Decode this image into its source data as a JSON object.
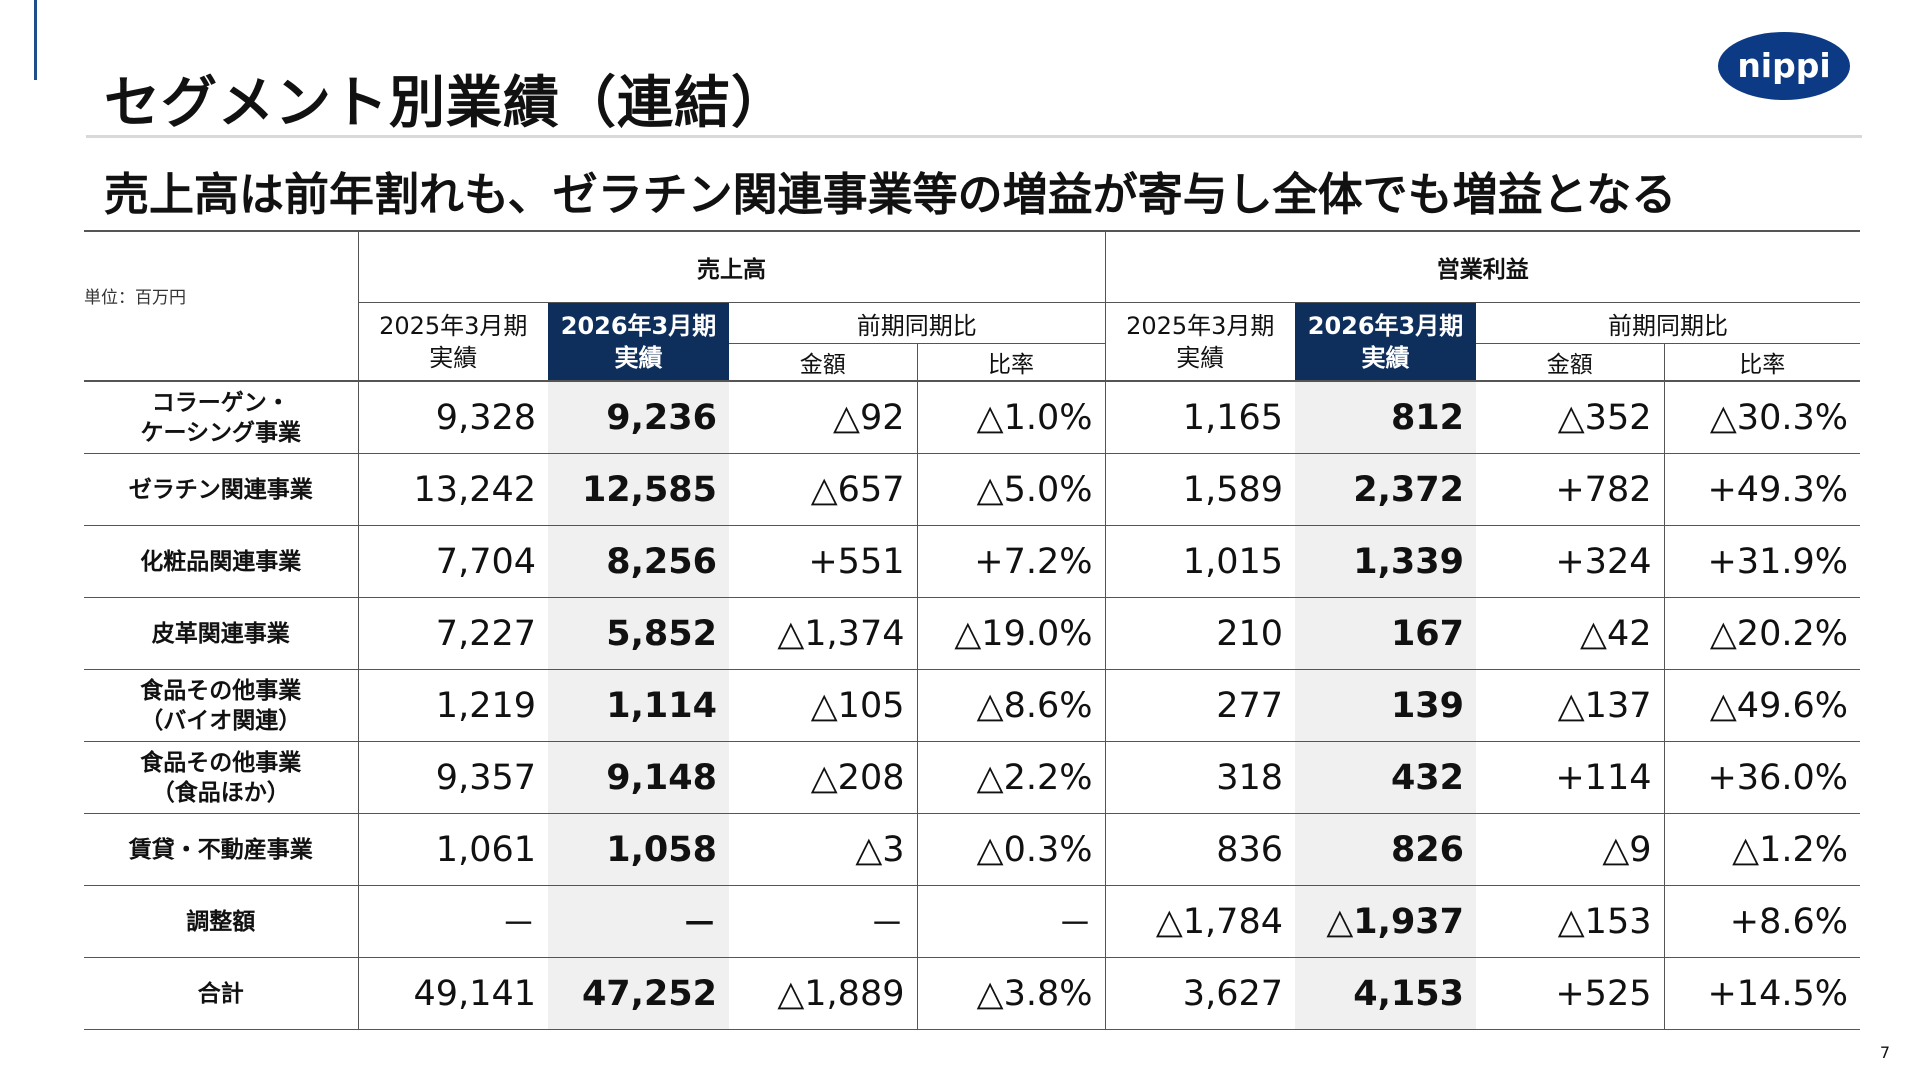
{
  "slide": {
    "title": "セグメント別業績（連結）",
    "logo_text": "nippi",
    "subtitle": "売上高は前年割れも、ゼラチン関連事業等の増益が寄与し全体でも増益となる",
    "page_number": "7",
    "colors": {
      "accent": "#1f4e8c",
      "logo_bg": "#0d3a84",
      "current_header_bg": "#0e2f5c",
      "current_column_bg": "#f0f0f0"
    }
  },
  "table": {
    "unit": "単位：百万円",
    "groups": [
      "売上高",
      "営業利益"
    ],
    "year_prev": [
      "2025年3月期",
      "実績"
    ],
    "year_curr": [
      "2026年3月期",
      "実績"
    ],
    "comparison": "前期同期比",
    "sub_amount": "金額",
    "sub_ratio": "比率",
    "rows": [
      {
        "label": [
          "コラーゲン・",
          "ケーシング事業"
        ],
        "values": [
          "9,328",
          "9,236",
          "△92",
          "△1.0%",
          "1,165",
          "812",
          "△352",
          "△30.3%"
        ]
      },
      {
        "label": [
          "ゼラチン関連事業"
        ],
        "values": [
          "13,242",
          "12,585",
          "△657",
          "△5.0%",
          "1,589",
          "2,372",
          "+782",
          "+49.3%"
        ]
      },
      {
        "label": [
          "化粧品関連事業"
        ],
        "values": [
          "7,704",
          "8,256",
          "+551",
          "+7.2%",
          "1,015",
          "1,339",
          "+324",
          "+31.9%"
        ]
      },
      {
        "label": [
          "皮革関連事業"
        ],
        "values": [
          "7,227",
          "5,852",
          "△1,374",
          "△19.0%",
          "210",
          "167",
          "△42",
          "△20.2%"
        ]
      },
      {
        "label": [
          "食品その他事業",
          "（バイオ関連）"
        ],
        "values": [
          "1,219",
          "1,114",
          "△105",
          "△8.6%",
          "277",
          "139",
          "△137",
          "△49.6%"
        ]
      },
      {
        "label": [
          "食品その他事業",
          "（食品ほか）"
        ],
        "values": [
          "9,357",
          "9,148",
          "△208",
          "△2.2%",
          "318",
          "432",
          "+114",
          "+36.0%"
        ]
      },
      {
        "label": [
          "賃貸・不動産事業"
        ],
        "values": [
          "1,061",
          "1,058",
          "△3",
          "△0.3%",
          "836",
          "826",
          "△9",
          "△1.2%"
        ]
      },
      {
        "label": [
          "調整額"
        ],
        "values": [
          "－",
          "－",
          "－",
          "－",
          "△1,784",
          "△1,937",
          "△153",
          "+8.6%"
        ]
      },
      {
        "label": [
          "合計"
        ],
        "values": [
          "49,141",
          "47,252",
          "△1,889",
          "△3.8%",
          "3,627",
          "4,153",
          "+525",
          "+14.5%"
        ]
      }
    ]
  }
}
